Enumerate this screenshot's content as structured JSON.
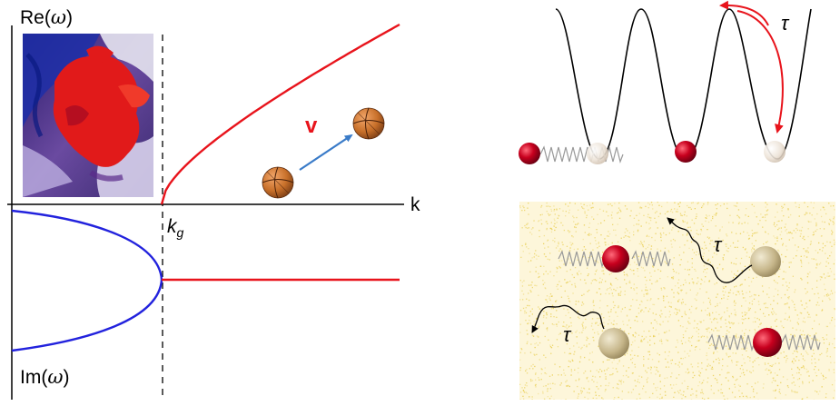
{
  "dispersion_plot": {
    "re_label_prefix": "Re(",
    "re_label_symbol": "ω",
    "re_label_suffix": ")",
    "im_label_prefix": "Im(",
    "im_label_symbol": "ω",
    "im_label_suffix": ")",
    "x_axis_label": "k",
    "critical_label_base": "k",
    "critical_label_sub": "g",
    "velocity_label": "v",
    "colors": {
      "axis": "#000000",
      "real_branch": "#e8141c",
      "imag_branch_left": "#2222dd",
      "imag_branch_right": "#e8141c",
      "velocity_arrow": "#3a7bc8",
      "velocity_label": "#e8141c",
      "ball": "#c8702a"
    }
  },
  "potential_panel": {
    "hop_time_label": "τ",
    "colors": {
      "curve": "#000000",
      "hop_arrow": "#e8141c",
      "red_particle": "#b8001a",
      "ghost_particle": "#e8dcd0",
      "spring": "#999999"
    }
  },
  "fluid_panel": {
    "upper_path_label": "τ",
    "lower_path_label": "τ",
    "colors": {
      "background": "#fdf6da",
      "noise": "#e9cf55",
      "red_particle": "#b8001a",
      "tan_particle": "#c9b98e",
      "spring": "#999999",
      "path": "#000000"
    }
  }
}
